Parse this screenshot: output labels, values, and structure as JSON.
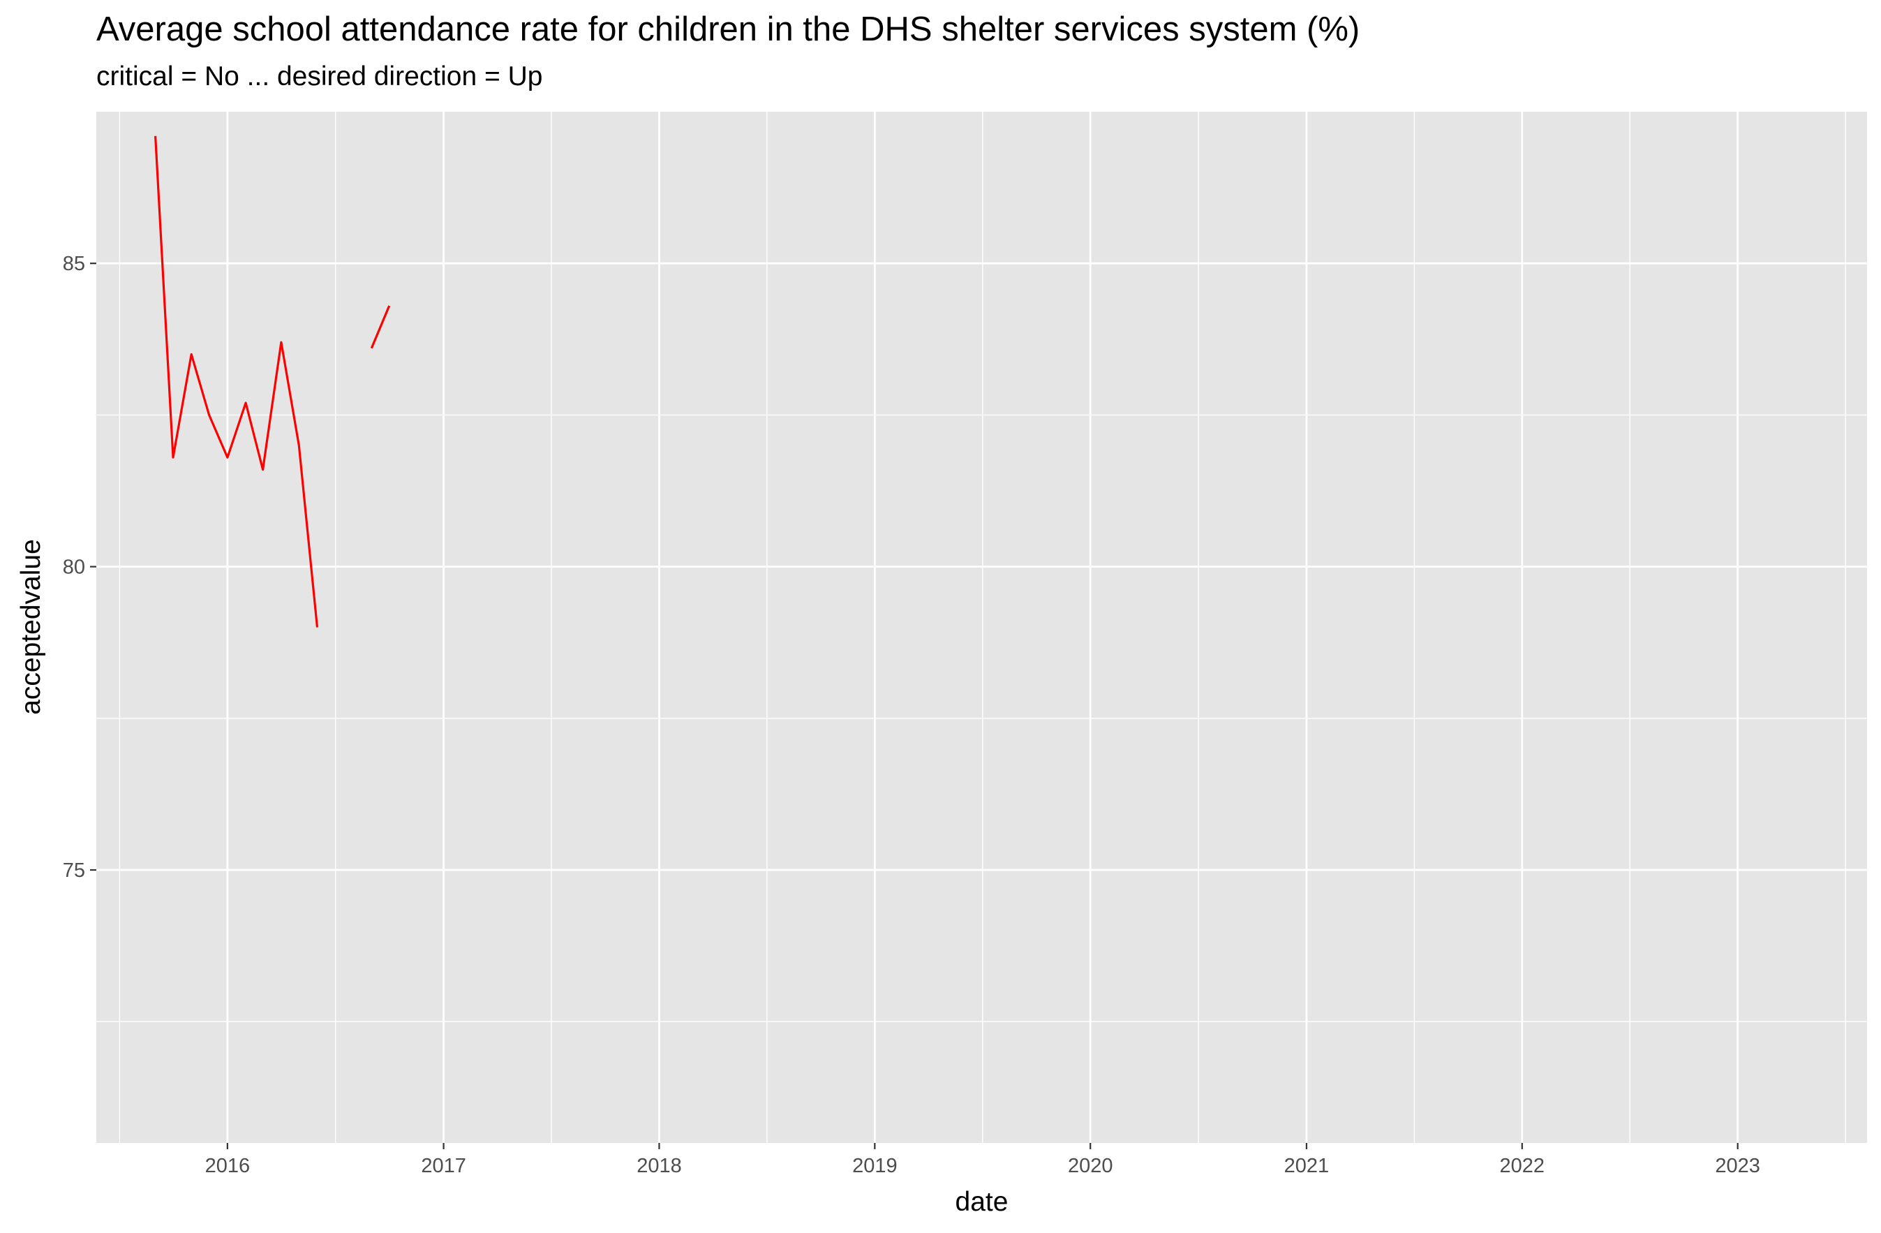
{
  "chart_data": {
    "type": "line",
    "title": "Average school attendance rate for children in the DHS shelter services system (%)",
    "subtitle": "critical = No ... desired direction = Up",
    "xlabel": "date",
    "ylabel": "acceptedvalue",
    "x_ticks": [
      "2016",
      "2017",
      "2018",
      "2019",
      "2020",
      "2021",
      "2022",
      "2023"
    ],
    "y_ticks": [
      "75",
      "80",
      "85"
    ],
    "xlim": [
      "2015-05-24",
      "2023-08-08"
    ],
    "ylim": [
      70.5,
      87.5
    ],
    "grid": true,
    "panel_background": "#e5e5e5",
    "grid_color": "#ffffff",
    "line_color": "#ff0000",
    "series": [
      {
        "segments": [
          [
            {
              "x": "2015-09-01",
              "y": 87.1
            },
            {
              "x": "2015-10-01",
              "y": 81.8
            },
            {
              "x": "2015-11-01",
              "y": 83.5
            },
            {
              "x": "2015-12-01",
              "y": 82.5
            },
            {
              "x": "2016-01-01",
              "y": 81.8
            },
            {
              "x": "2016-02-01",
              "y": 82.7
            },
            {
              "x": "2016-03-01",
              "y": 81.6
            },
            {
              "x": "2016-04-01",
              "y": 83.7
            },
            {
              "x": "2016-05-01",
              "y": 82.0
            },
            {
              "x": "2016-06-01",
              "y": 79.0
            }
          ],
          [
            {
              "x": "2016-09-01",
              "y": 83.6
            },
            {
              "x": "2016-10-01",
              "y": 84.3
            }
          ]
        ]
      }
    ]
  }
}
